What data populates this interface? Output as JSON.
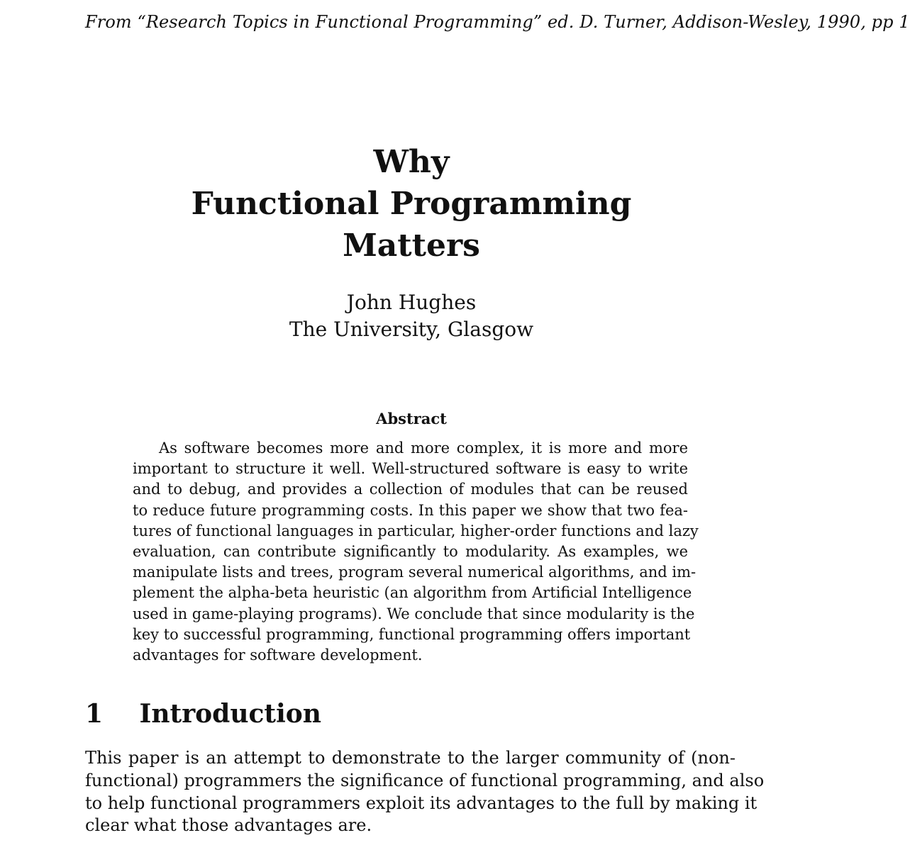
{
  "source_note": "From “Research Topics in Functional Programming” ed. D. Turner, Addison-Wesley, 1990, pp 1",
  "title": {
    "lines": [
      "Why",
      "Functional Programming",
      "Matters"
    ]
  },
  "author": {
    "name": "John Hughes",
    "affiliation": "The University, Glasgow"
  },
  "abstract": {
    "heading": "Abstract",
    "lines": [
      "As software becomes more and more complex, it is more and more",
      "important to structure it well. Well-structured software is easy to write",
      "and to debug, and provides a collection of modules that can be reused",
      "to reduce future programming costs. In this paper we show that two fea-",
      "tures of functional languages in particular, higher-order functions and lazy",
      "evaluation, can contribute significantly to modularity. As examples, we",
      "manipulate lists and trees, program several numerical algorithms, and im-",
      "plement the alpha-beta heuristic (an algorithm from Artificial Intelligence",
      "used in game-playing programs). We conclude that since modularity is the",
      "key to successful programming, functional programming offers important",
      "advantages for software development."
    ]
  },
  "section": {
    "number": "1",
    "title": "Introduction",
    "lines": [
      "This paper is an attempt to demonstrate to the larger community of (non-",
      "functional) programmers the significance of functional programming, and also",
      "to help functional programmers exploit its advantages to the full by making it",
      "clear what those advantages are."
    ]
  }
}
